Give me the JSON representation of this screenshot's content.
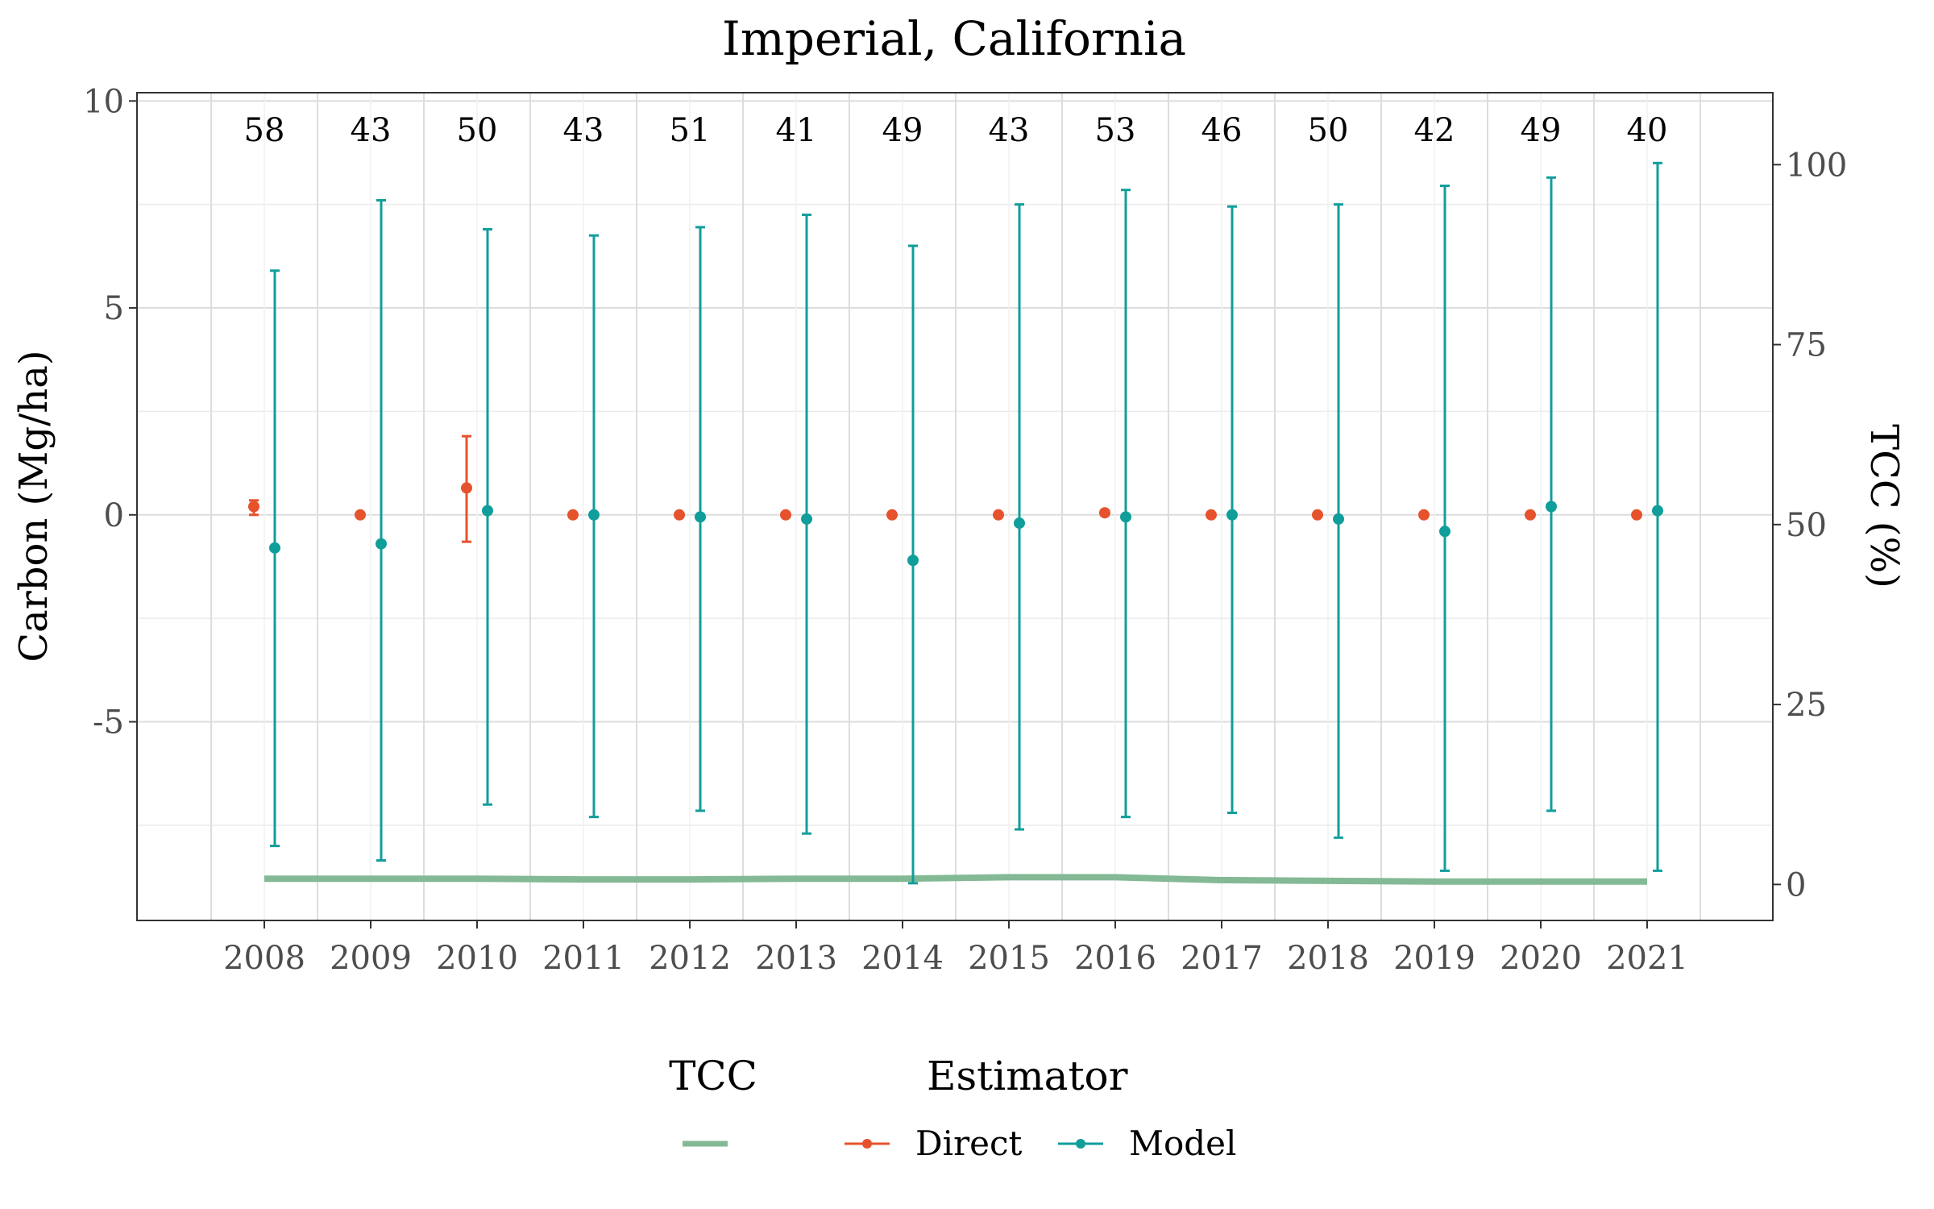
{
  "chart_data": {
    "type": "scatter",
    "title": "Imperial, California",
    "xlabel": "",
    "ylabel": "Carbon (Mg/ha)",
    "y2label": "TCC (%)",
    "categories": [
      "2008",
      "2009",
      "2010",
      "2011",
      "2012",
      "2013",
      "2014",
      "2015",
      "2016",
      "2017",
      "2018",
      "2019",
      "2020",
      "2021"
    ],
    "counts": [
      "58",
      "43",
      "50",
      "43",
      "51",
      "41",
      "49",
      "43",
      "53",
      "46",
      "50",
      "42",
      "49",
      "40"
    ],
    "ylim": [
      -9.8,
      10.2
    ],
    "y_ticks": [
      "10",
      "5",
      "0",
      "-5"
    ],
    "y2lim": [
      -5,
      110
    ],
    "y2_ticks": [
      "100",
      "75",
      "50",
      "25",
      "0"
    ],
    "grid": true,
    "series": [
      {
        "name": "Direct",
        "color": "#e6522c",
        "values": [
          0.2,
          0.0,
          0.65,
          0.0,
          0.0,
          0.0,
          0.0,
          0.0,
          0.05,
          0.0,
          0.0,
          0.0,
          0.0,
          0.0
        ],
        "lower": [
          0.0,
          0.0,
          -0.65,
          0.0,
          0.0,
          0.0,
          0.0,
          0.0,
          0.0,
          0.0,
          0.0,
          0.0,
          0.0,
          0.0
        ],
        "upper": [
          0.35,
          0.0,
          1.9,
          0.0,
          0.0,
          0.0,
          0.0,
          0.0,
          0.1,
          0.0,
          0.0,
          0.0,
          0.0,
          0.0
        ]
      },
      {
        "name": "Model",
        "color": "#109e9b",
        "values": [
          -0.8,
          -0.7,
          0.1,
          0.0,
          -0.05,
          -0.1,
          -1.1,
          -0.2,
          -0.05,
          0.0,
          -0.1,
          -0.4,
          0.2,
          0.1
        ],
        "lower": [
          -8.0,
          -8.35,
          -7.0,
          -7.3,
          -7.15,
          -7.7,
          -8.9,
          -7.6,
          -7.3,
          -7.2,
          -7.8,
          -8.6,
          -7.15,
          -8.6
        ],
        "upper": [
          5.9,
          7.6,
          6.9,
          6.75,
          6.95,
          7.25,
          6.5,
          7.5,
          7.85,
          7.45,
          7.5,
          7.95,
          8.15,
          8.5
        ]
      }
    ],
    "tcc": {
      "name": "TCC",
      "color": "#84b995",
      "values": [
        0.8,
        0.8,
        0.8,
        0.7,
        0.7,
        0.8,
        0.8,
        1.0,
        1.0,
        0.6,
        0.5,
        0.4,
        0.4,
        0.4
      ]
    },
    "legend": {
      "placement": "bottom",
      "tcc_title": "TCC",
      "estimator_title": "Estimator",
      "direct_label": "Direct",
      "model_label": "Model"
    }
  }
}
